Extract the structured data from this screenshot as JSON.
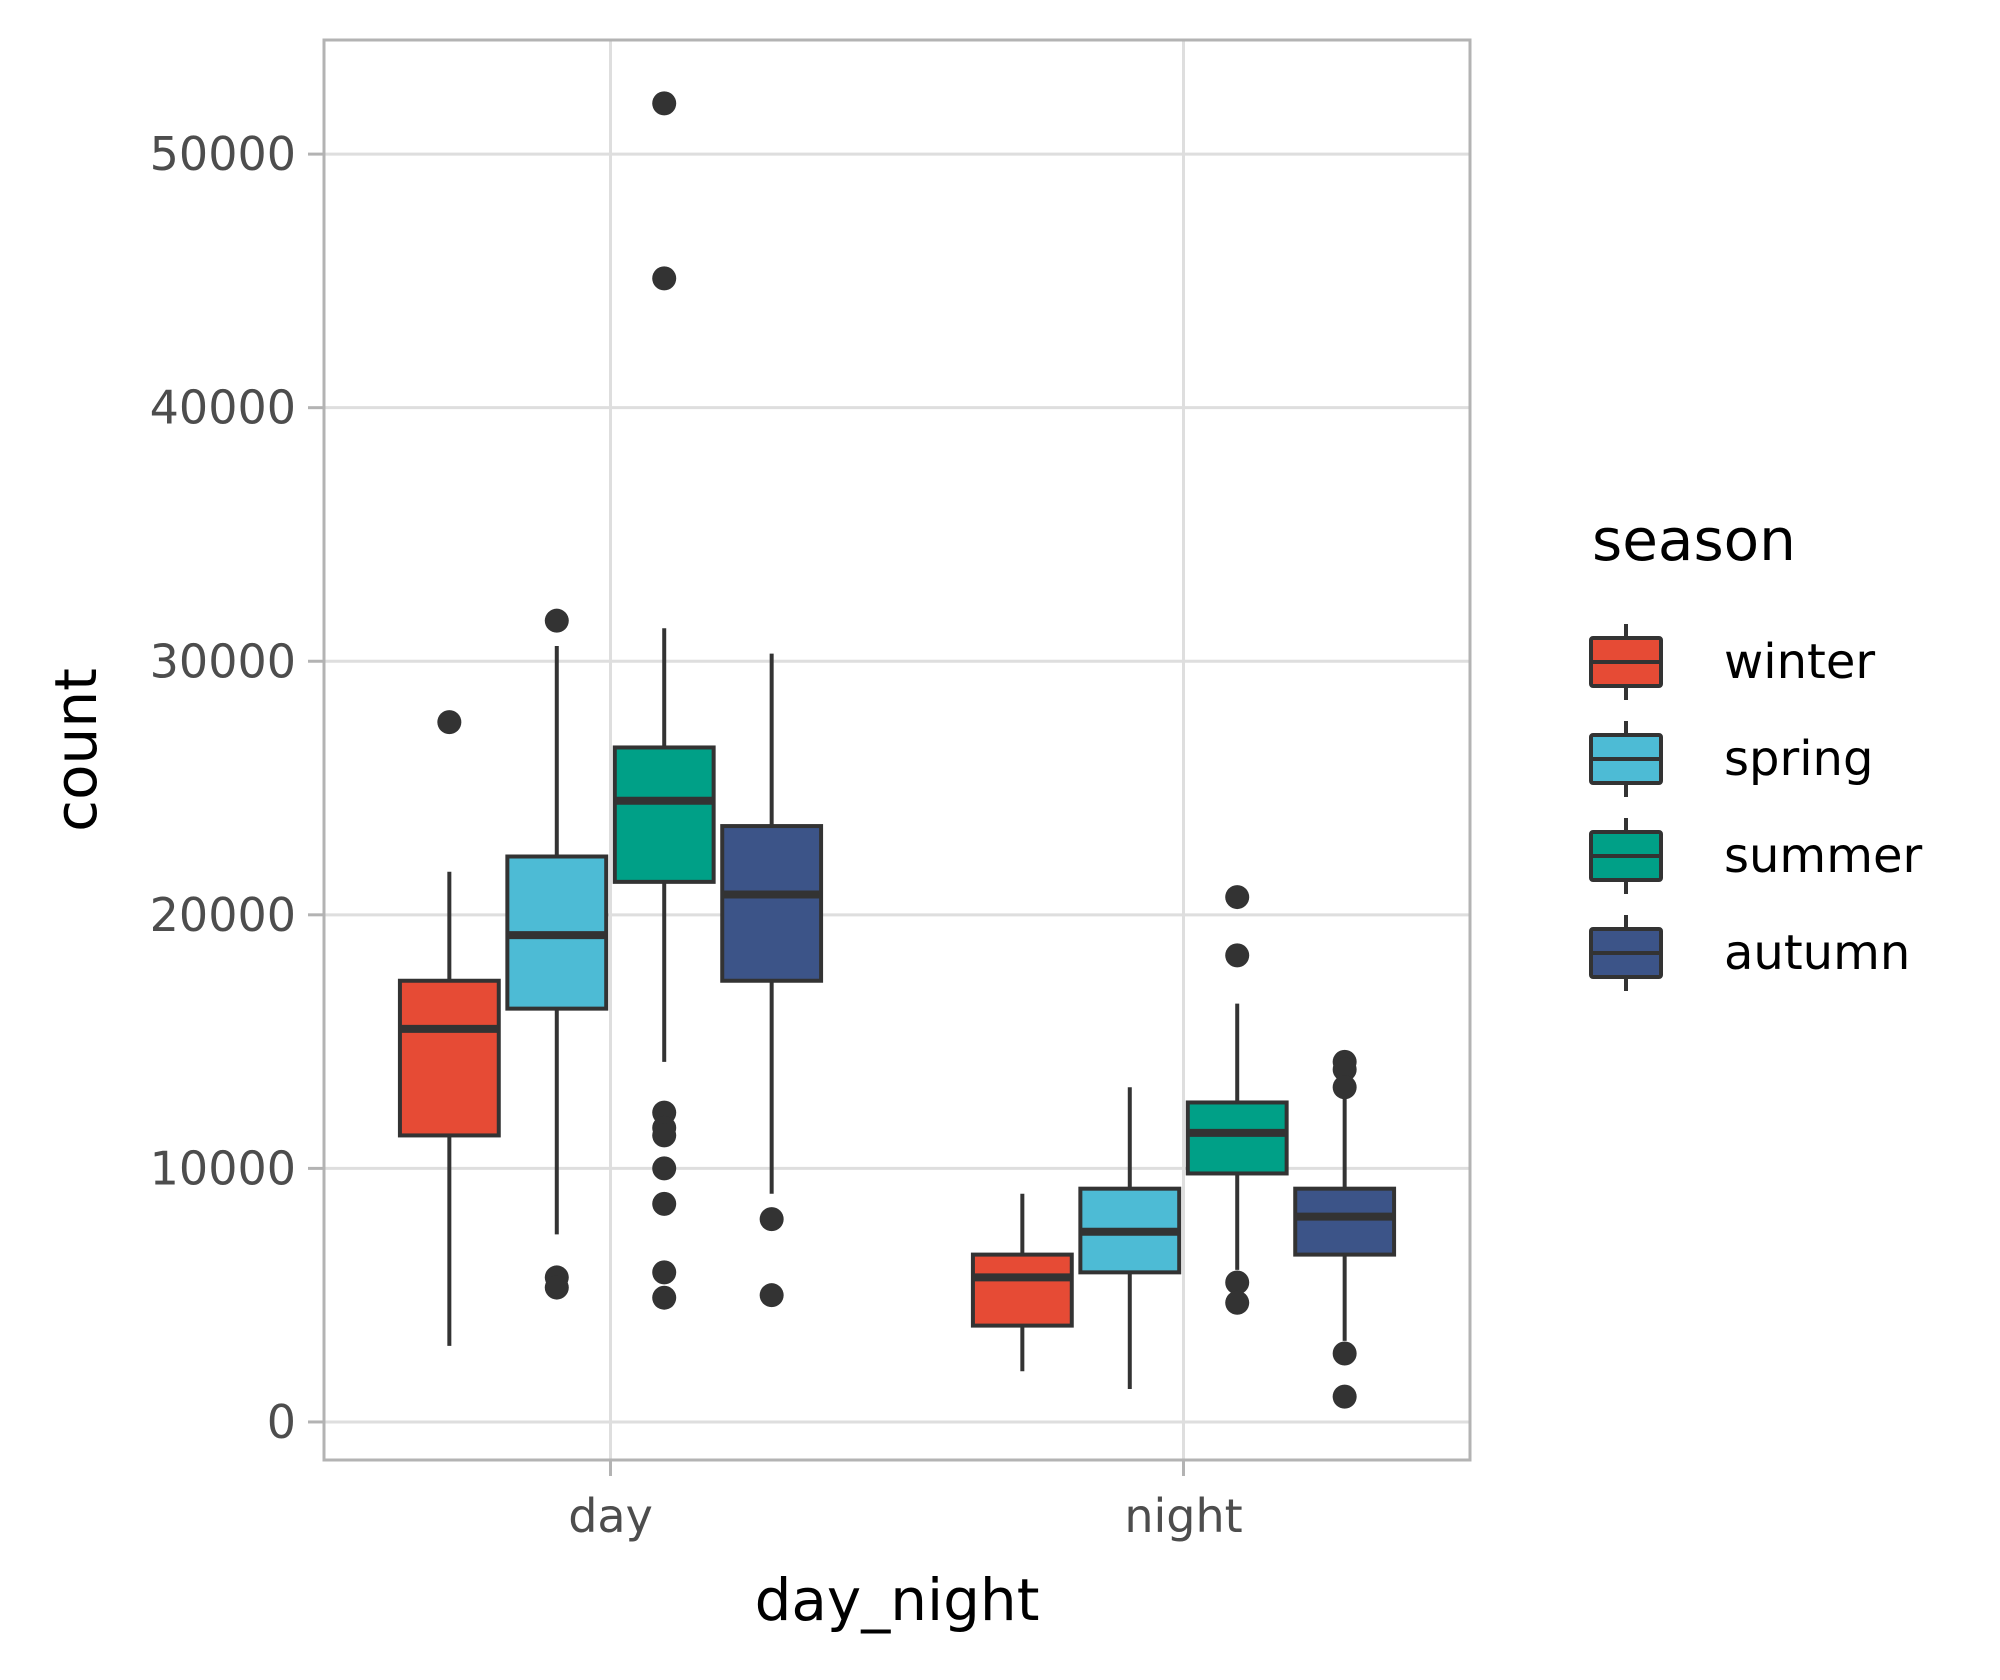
{
  "chart_data": {
    "type": "boxplot",
    "title": "",
    "xlabel": "day_night",
    "ylabel": "count",
    "ylim": [
      -1500,
      54500
    ],
    "yticks": [
      0,
      10000,
      20000,
      30000,
      40000,
      50000
    ],
    "ytick_labels": [
      "0",
      "10000",
      "20000",
      "30000",
      "40000",
      "50000"
    ],
    "categories": [
      "day",
      "night"
    ],
    "grid": true,
    "legend": {
      "title": "season",
      "position": "right",
      "entries": [
        "winter",
        "spring",
        "summer",
        "autumn"
      ]
    },
    "colors": {
      "winter": "#E64B35",
      "spring": "#4DBBD5",
      "summer": "#00A087",
      "autumn": "#3C5488",
      "outline": "#333333"
    },
    "series": [
      {
        "name": "winter",
        "boxes": [
          {
            "category": "day",
            "lower_whisker": 3000,
            "q1": 11300,
            "median": 15500,
            "q3": 17400,
            "upper_whisker": 21700,
            "outliers": [
              27600
            ]
          },
          {
            "category": "night",
            "lower_whisker": 2000,
            "q1": 3800,
            "median": 5700,
            "q3": 6600,
            "upper_whisker": 9000,
            "outliers": []
          }
        ]
      },
      {
        "name": "spring",
        "boxes": [
          {
            "category": "day",
            "lower_whisker": 7400,
            "q1": 16300,
            "median": 19200,
            "q3": 22300,
            "upper_whisker": 30600,
            "outliers": [
              31600,
              5700,
              5300
            ]
          },
          {
            "category": "night",
            "lower_whisker": 1300,
            "q1": 5900,
            "median": 7500,
            "q3": 9200,
            "upper_whisker": 13200,
            "outliers": []
          }
        ]
      },
      {
        "name": "summer",
        "boxes": [
          {
            "category": "day",
            "lower_whisker": 14200,
            "q1": 21300,
            "median": 24500,
            "q3": 26600,
            "upper_whisker": 31300,
            "outliers": [
              52000,
              45100,
              12200,
              11600,
              11300,
              10000,
              8600,
              5900,
              4900
            ]
          },
          {
            "category": "night",
            "lower_whisker": 6000,
            "q1": 9800,
            "median": 11400,
            "q3": 12600,
            "upper_whisker": 16500,
            "outliers": [
              20700,
              18400,
              5500,
              4700
            ]
          }
        ]
      },
      {
        "name": "autumn",
        "boxes": [
          {
            "category": "day",
            "lower_whisker": 9000,
            "q1": 17400,
            "median": 20800,
            "q3": 23500,
            "upper_whisker": 30300,
            "outliers": [
              8000,
              5000
            ]
          },
          {
            "category": "night",
            "lower_whisker": 3200,
            "q1": 6600,
            "median": 8100,
            "q3": 9200,
            "upper_whisker": 13000,
            "outliers": [
              14200,
              13900,
              13200,
              2700,
              1000
            ]
          }
        ]
      }
    ]
  }
}
